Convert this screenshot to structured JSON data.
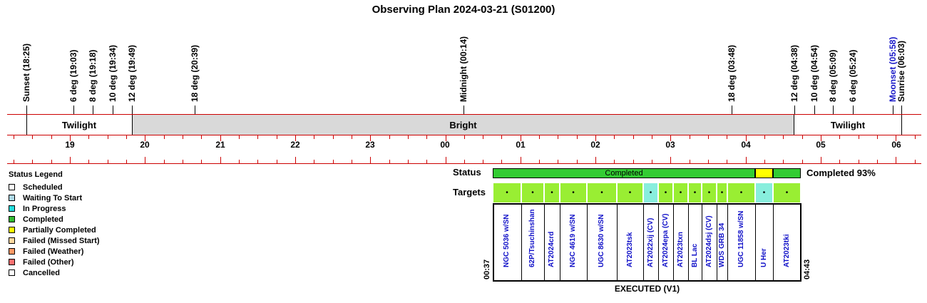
{
  "title": "Observing Plan 2024-03-21 (S01200)",
  "events": [
    {
      "label": "Sunset (18:25)",
      "color": "#000000"
    },
    {
      "label": "6 deg (19:03)",
      "color": "#000000"
    },
    {
      "label": "8 deg (19:18)",
      "color": "#000000"
    },
    {
      "label": "10 deg (19:34)",
      "color": "#000000"
    },
    {
      "label": "12 deg (19:49)",
      "color": "#000000"
    },
    {
      "label": "18 deg (20:39)",
      "color": "#000000"
    },
    {
      "label": "Midnight (00:14)",
      "color": "#000000"
    },
    {
      "label": "18 deg (03:48)",
      "color": "#000000"
    },
    {
      "label": "12 deg (04:38)",
      "color": "#000000"
    },
    {
      "label": "10 deg (04:54)",
      "color": "#000000"
    },
    {
      "label": "8 deg (05:09)",
      "color": "#000000"
    },
    {
      "label": "6 deg (05:24)",
      "color": "#000000"
    },
    {
      "label": "Moonset (05:58)",
      "color": "#1a1ac8"
    },
    {
      "label": "Sunrise (06:03)",
      "color": "#000000"
    }
  ],
  "bands": [
    {
      "label": "Twilight",
      "kind": "twilight"
    },
    {
      "label": "Bright",
      "kind": "bright"
    },
    {
      "label": "Twilight",
      "kind": "twilight"
    }
  ],
  "hours": [
    "19",
    "20",
    "21",
    "22",
    "23",
    "00",
    "01",
    "02",
    "03",
    "04",
    "05",
    "06"
  ],
  "legend": {
    "heading": "Status Legend",
    "items": [
      {
        "label": "Scheduled",
        "color": "#ffffff"
      },
      {
        "label": "Waiting To Start",
        "color": "#add8e6"
      },
      {
        "label": "In Progress",
        "color": "#22dede"
      },
      {
        "label": "Completed",
        "color": "#33bb33"
      },
      {
        "label": "Partially Completed",
        "color": "#ffff00"
      },
      {
        "label": "Failed (Missed Start)",
        "color": "#ffd9a0"
      },
      {
        "label": "Failed (Weather)",
        "color": "#ff9966"
      },
      {
        "label": "Failed (Other)",
        "color": "#ff7070"
      },
      {
        "label": "Cancelled",
        "color": "#ffffff"
      }
    ]
  },
  "rows": {
    "status_label": "Status",
    "targets_label": "Targets"
  },
  "status_segments": [
    {
      "label": "Completed",
      "color": "#33cc33"
    },
    {
      "label": "",
      "color": "#ffff00"
    },
    {
      "label": "",
      "color": "#33cc33"
    }
  ],
  "target_marker": "•",
  "targets": [
    {
      "name": "NGC 5036 w/SN",
      "color": "#99ee33"
    },
    {
      "name": "62P/Tsuchinshan",
      "color": "#99ee33"
    },
    {
      "name": "AT2024crd",
      "color": "#99ee33"
    },
    {
      "name": "NGC 4619 w/SN",
      "color": "#99ee33"
    },
    {
      "name": "UGC 8630 w/SN",
      "color": "#99ee33"
    },
    {
      "name": "AT2023tsk",
      "color": "#99ee33"
    },
    {
      "name": "AT2022xij (CV)",
      "color": "#88eedd"
    },
    {
      "name": "AT2024epa (CV)",
      "color": "#99ee33"
    },
    {
      "name": "AT2023txn",
      "color": "#99ee33"
    },
    {
      "name": "BL Lac",
      "color": "#99ee33"
    },
    {
      "name": "AT2024dsj (CV)",
      "color": "#99ee33"
    },
    {
      "name": "WDS GRB 34",
      "color": "#99ee33"
    },
    {
      "name": "UGC 11858 w/SN",
      "color": "#99ee33"
    },
    {
      "name": "U Her",
      "color": "#88eedd"
    },
    {
      "name": "AT2023tki",
      "color": "#99ee33"
    }
  ],
  "start_time": "00:37",
  "end_time": "04:43",
  "executed_caption": "EXECUTED (V1)",
  "completion_summary": "Completed 93%"
}
